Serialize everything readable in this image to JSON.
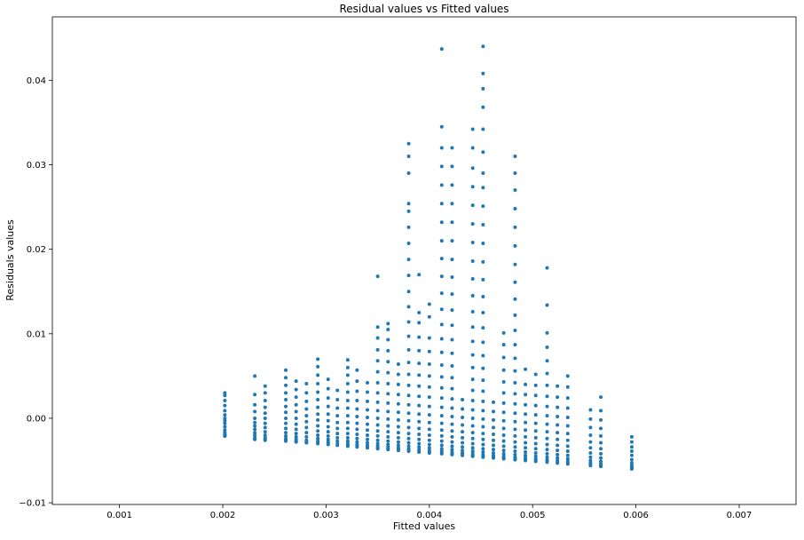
{
  "chart_data": {
    "type": "scatter",
    "title": "Residual values vs Fitted values",
    "xlabel": "Fitted values",
    "ylabel": "Residuals values",
    "xlim": [
      0.00035,
      0.00755
    ],
    "ylim": [
      -0.0102,
      0.0475
    ],
    "xticks": [
      0.001,
      0.002,
      0.003,
      0.004,
      0.005,
      0.006,
      0.007
    ],
    "xtick_labels": [
      "0.001",
      "0.002",
      "0.003",
      "0.004",
      "0.005",
      "0.006",
      "0.007"
    ],
    "yticks": [
      -0.01,
      0.0,
      0.01,
      0.02,
      0.03,
      0.04
    ],
    "ytick_labels": [
      "−0.01",
      "0.00",
      "0.01",
      "0.02",
      "0.03",
      "0.04"
    ],
    "grid": false,
    "legend": "none",
    "marker_color": "#1f77b4",
    "columns": [
      {
        "x": 0.00202,
        "y": [
          -0.0021,
          -0.0021,
          -0.002,
          -0.0019,
          -0.0017,
          -0.0014,
          -0.001,
          -0.0006,
          -0.0003,
          0.0,
          0.0004,
          0.0009,
          0.0015,
          0.0021,
          0.0027,
          0.003
        ]
      },
      {
        "x": 0.00231,
        "y": [
          -0.0025,
          -0.0024,
          -0.0023,
          -0.002,
          -0.0017,
          -0.0013,
          -0.0009,
          -0.0005,
          0.0,
          0.0008,
          0.0016,
          0.0028,
          0.005
        ]
      },
      {
        "x": 0.00241,
        "y": [
          -0.0026,
          -0.0025,
          -0.0023,
          -0.002,
          -0.0016,
          -0.0011,
          -0.0006,
          0.0,
          0.0006,
          0.0013,
          0.0021,
          0.003,
          0.0038
        ]
      },
      {
        "x": 0.00261,
        "y": [
          -0.0027,
          -0.0026,
          -0.0024,
          -0.0021,
          -0.0017,
          -0.0012,
          -0.0006,
          0.0,
          0.0007,
          0.0014,
          0.0022,
          0.003,
          0.0039,
          0.0048,
          0.0057
        ]
      },
      {
        "x": 0.00271,
        "y": [
          -0.0028,
          -0.0027,
          -0.0025,
          -0.0022,
          -0.0018,
          -0.0013,
          -0.0007,
          0.0,
          0.0008,
          0.0016,
          0.0025,
          0.0034,
          0.0044
        ]
      },
      {
        "x": 0.00281,
        "y": [
          -0.0029,
          -0.0028,
          -0.0026,
          -0.0022,
          -0.0017,
          -0.0011,
          -0.0004,
          0.0003,
          0.0011,
          0.002,
          0.003,
          0.0041
        ]
      },
      {
        "x": 0.00292,
        "y": [
          -0.003,
          -0.0029,
          -0.0027,
          -0.0024,
          -0.002,
          -0.0015,
          -0.0009,
          -0.0002,
          0.0005,
          0.0013,
          0.0022,
          0.0031,
          0.0041,
          0.0051,
          0.0061,
          0.007
        ]
      },
      {
        "x": 0.00302,
        "y": [
          -0.0031,
          -0.003,
          -0.0028,
          -0.0025,
          -0.0021,
          -0.0016,
          -0.001,
          -0.0003,
          0.0005,
          0.0014,
          0.0024,
          0.0035,
          0.0046
        ]
      },
      {
        "x": 0.00311,
        "y": [
          -0.0032,
          -0.003,
          -0.0027,
          -0.0023,
          -0.0018,
          -0.0012,
          -0.0005,
          0.0003,
          0.0012,
          0.0022,
          0.0033
        ]
      },
      {
        "x": 0.00321,
        "y": [
          -0.0033,
          -0.0032,
          -0.003,
          -0.0027,
          -0.0023,
          -0.0018,
          -0.0012,
          -0.0005,
          0.0003,
          0.0012,
          0.0021,
          0.0031,
          0.0041,
          0.0051,
          0.006,
          0.0069
        ]
      },
      {
        "x": 0.0033,
        "y": [
          -0.0034,
          -0.0033,
          -0.0031,
          -0.0028,
          -0.0024,
          -0.0019,
          -0.0013,
          -0.0006,
          0.0002,
          0.0011,
          0.0021,
          0.0032,
          0.0044,
          0.0057
        ]
      },
      {
        "x": 0.0034,
        "y": [
          -0.0035,
          -0.0034,
          -0.0032,
          -0.0029,
          -0.0025,
          -0.002,
          -0.0014,
          -0.0007,
          0.0001,
          0.001,
          0.002,
          0.0031,
          0.0042
        ]
      },
      {
        "x": 0.0035,
        "y": [
          -0.0036,
          -0.0035,
          -0.0033,
          -0.003,
          -0.0026,
          -0.0021,
          -0.0015,
          -0.0008,
          0.0,
          0.0009,
          0.0019,
          0.003,
          0.0042,
          0.0055,
          0.0068,
          0.0081,
          0.0095,
          0.0108,
          0.0168
        ]
      },
      {
        "x": 0.0036,
        "y": [
          -0.0037,
          -0.0036,
          -0.0034,
          -0.0031,
          -0.0027,
          -0.0022,
          -0.0016,
          -0.0009,
          -0.0001,
          0.0008,
          0.0018,
          0.0029,
          0.0041,
          0.0054,
          0.0067,
          0.008,
          0.0093,
          0.0105,
          0.0112
        ]
      },
      {
        "x": 0.0037,
        "y": [
          -0.0038,
          -0.0037,
          -0.0035,
          -0.0032,
          -0.0028,
          -0.0023,
          -0.0017,
          -0.001,
          -0.0002,
          0.0007,
          0.0017,
          0.0028,
          0.004,
          0.0052,
          0.0064
        ]
      },
      {
        "x": 0.0038,
        "y": [
          -0.0039,
          -0.0038,
          -0.0036,
          -0.0033,
          -0.0029,
          -0.0024,
          -0.0018,
          -0.0011,
          -0.0003,
          0.0006,
          0.0016,
          0.0027,
          0.0039,
          0.0052,
          0.0066,
          0.0081,
          0.0097,
          0.0114,
          0.0132,
          0.015,
          0.0169,
          0.0188,
          0.0207,
          0.0226,
          0.0245,
          0.0254,
          0.029,
          0.031,
          0.0325
        ]
      },
      {
        "x": 0.0039,
        "y": [
          -0.004,
          -0.0039,
          -0.0037,
          -0.0034,
          -0.003,
          -0.0025,
          -0.0019,
          -0.0012,
          -0.0004,
          0.0005,
          0.0015,
          0.0026,
          0.0038,
          0.0051,
          0.0065,
          0.008,
          0.0096,
          0.0113,
          0.0125,
          0.017
        ]
      },
      {
        "x": 0.004,
        "y": [
          -0.0041,
          -0.004,
          -0.0038,
          -0.0035,
          -0.0031,
          -0.0026,
          -0.002,
          -0.0013,
          -0.0005,
          0.0004,
          0.0014,
          0.0025,
          0.0037,
          0.005,
          0.0064,
          0.0079,
          0.0095,
          0.012,
          0.0135
        ]
      },
      {
        "x": 0.00412,
        "y": [
          -0.0042,
          -0.0041,
          -0.0039,
          -0.0036,
          -0.0032,
          -0.0027,
          -0.0021,
          -0.0014,
          -0.0006,
          0.0003,
          0.0013,
          0.0024,
          0.0036,
          0.0049,
          0.0063,
          0.0078,
          0.0094,
          0.0111,
          0.0129,
          0.0148,
          0.0168,
          0.0189,
          0.021,
          0.0232,
          0.0254,
          0.0276,
          0.0298,
          0.032,
          0.0345,
          0.0437
        ]
      },
      {
        "x": 0.00422,
        "y": [
          -0.0043,
          -0.0042,
          -0.004,
          -0.0037,
          -0.0033,
          -0.0028,
          -0.0022,
          -0.0015,
          -0.0007,
          0.0002,
          0.0012,
          0.0023,
          0.0035,
          0.0048,
          0.0062,
          0.0077,
          0.0093,
          0.011,
          0.0128,
          0.0147,
          0.0167,
          0.0188,
          0.021,
          0.0232,
          0.0254,
          0.0276,
          0.0298,
          0.032
        ]
      },
      {
        "x": 0.00432,
        "y": [
          -0.0044,
          -0.0043,
          -0.0041,
          -0.0038,
          -0.0034,
          -0.0029,
          -0.0023,
          -0.0016,
          -0.0008,
          0.0001,
          0.0011,
          0.0022
        ]
      },
      {
        "x": 0.00442,
        "y": [
          -0.0045,
          -0.0044,
          -0.0042,
          -0.0039,
          -0.0035,
          -0.003,
          -0.0024,
          -0.0017,
          -0.0009,
          0.0,
          0.001,
          0.0021,
          0.0033,
          0.0046,
          0.006,
          0.0075,
          0.0091,
          0.0108,
          0.0126,
          0.0145,
          0.0165,
          0.0186,
          0.0208,
          0.023,
          0.0252,
          0.0274,
          0.0296,
          0.032,
          0.0342
        ]
      },
      {
        "x": 0.00452,
        "y": [
          -0.0046,
          -0.0045,
          -0.0043,
          -0.004,
          -0.0036,
          -0.0031,
          -0.0025,
          -0.0018,
          -0.001,
          -0.0001,
          0.0009,
          0.002,
          0.0032,
          0.0045,
          0.0059,
          0.0074,
          0.009,
          0.0107,
          0.0125,
          0.0144,
          0.0164,
          0.0185,
          0.0207,
          0.0229,
          0.0251,
          0.0273,
          0.029,
          0.0315,
          0.0342,
          0.0368,
          0.039,
          0.0408,
          0.044
        ]
      },
      {
        "x": 0.00462,
        "y": [
          -0.0047,
          -0.0046,
          -0.0044,
          -0.0041,
          -0.0037,
          -0.0032,
          -0.0026,
          -0.0019,
          -0.0011,
          -0.0002,
          0.0008,
          0.0019
        ]
      },
      {
        "x": 0.00472,
        "y": [
          -0.0048,
          -0.0047,
          -0.0045,
          -0.0042,
          -0.0038,
          -0.0033,
          -0.0027,
          -0.002,
          -0.0012,
          -0.0003,
          0.0007,
          0.0018,
          0.003,
          0.0043,
          0.0057,
          0.0072,
          0.0087,
          0.0101
        ]
      },
      {
        "x": 0.00483,
        "y": [
          -0.0049,
          -0.0048,
          -0.0046,
          -0.0043,
          -0.0039,
          -0.0034,
          -0.0028,
          -0.0021,
          -0.0013,
          -0.0004,
          0.0006,
          0.0017,
          0.0029,
          0.0042,
          0.0056,
          0.0071,
          0.0087,
          0.0104,
          0.0122,
          0.0141,
          0.0161,
          0.0182,
          0.0204,
          0.0226,
          0.0248,
          0.027,
          0.029,
          0.031
        ]
      },
      {
        "x": 0.00493,
        "y": [
          -0.005,
          -0.0049,
          -0.0047,
          -0.0044,
          -0.004,
          -0.0035,
          -0.0029,
          -0.0022,
          -0.0014,
          -0.0005,
          0.0005,
          0.0016,
          0.0028,
          0.004,
          0.0058
        ]
      },
      {
        "x": 0.00503,
        "y": [
          -0.0051,
          -0.005,
          -0.0048,
          -0.0045,
          -0.0041,
          -0.0036,
          -0.003,
          -0.0023,
          -0.0015,
          -0.0006,
          0.0004,
          0.0015,
          0.0027,
          0.0039,
          0.0052
        ]
      },
      {
        "x": 0.00514,
        "y": [
          -0.0052,
          -0.0051,
          -0.0049,
          -0.0046,
          -0.0042,
          -0.0037,
          -0.0031,
          -0.0024,
          -0.0016,
          -0.0007,
          0.0003,
          0.0014,
          0.0026,
          0.0039,
          0.0053,
          0.0068,
          0.0084,
          0.0101,
          0.0134,
          0.0178
        ]
      },
      {
        "x": 0.00524,
        "y": [
          -0.0053,
          -0.0052,
          -0.005,
          -0.0047,
          -0.0043,
          -0.0038,
          -0.0032,
          -0.0025,
          -0.0017,
          -0.0008,
          0.0002,
          0.0013,
          0.0025,
          0.0038
        ]
      },
      {
        "x": 0.00534,
        "y": [
          -0.0054,
          -0.0053,
          -0.0051,
          -0.0048,
          -0.0044,
          -0.0039,
          -0.0033,
          -0.0026,
          -0.0018,
          -0.0009,
          0.0001,
          0.0012,
          0.0024,
          0.0037,
          0.005
        ]
      },
      {
        "x": 0.00556,
        "y": [
          -0.0056,
          -0.0055,
          -0.0053,
          -0.005,
          -0.0046,
          -0.0041,
          -0.0035,
          -0.0028,
          -0.002,
          -0.0011,
          -0.0001,
          0.001
        ]
      },
      {
        "x": 0.00566,
        "y": [
          -0.0057,
          -0.0056,
          -0.0054,
          -0.0051,
          -0.0047,
          -0.0042,
          -0.0036,
          -0.0029,
          -0.0021,
          -0.0012,
          -0.0002,
          0.0009,
          0.0025
        ]
      },
      {
        "x": 0.00596,
        "y": [
          -0.006,
          -0.0059,
          -0.0058,
          -0.0056,
          -0.0053,
          -0.0049,
          -0.0044,
          -0.0039,
          -0.0034,
          -0.0028,
          -0.0022
        ]
      }
    ]
  }
}
